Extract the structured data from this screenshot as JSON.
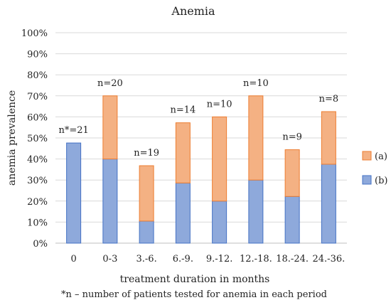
{
  "chart_data": {
    "type": "bar",
    "stacked": true,
    "title": "Anemia",
    "xlabel": "treatment duration in months",
    "ylabel": "anemia prevalence",
    "footnote": "*n – number of patients tested for anemia in each period",
    "categories": [
      "0",
      "0-3",
      "3.-6.",
      "6.-9.",
      "9.-12.",
      "12.-18.",
      "18.-24.",
      "24.-36."
    ],
    "n_labels": [
      "n*=21",
      "n=20",
      "n=19",
      "n=14",
      "n=10",
      "n=10",
      "n=9",
      "n=8"
    ],
    "series": [
      {
        "name": "(b)",
        "values": [
          47.6,
          40,
          10.5,
          28.6,
          20,
          30,
          22.2,
          37.5
        ],
        "color": "#8ea9db",
        "stroke": "#4472c4"
      },
      {
        "name": "(a)",
        "values": [
          0,
          30,
          26.3,
          28.6,
          40,
          40,
          22.2,
          25
        ],
        "color": "#f4b183",
        "stroke": "#ed7d31"
      }
    ],
    "legend_order": [
      "(a)",
      "(b)"
    ],
    "legend_position": "right",
    "ylim": [
      0,
      100
    ],
    "yticks": [
      "0%",
      "10%",
      "20%",
      "30%",
      "40%",
      "50%",
      "60%",
      "70%",
      "80%",
      "90%",
      "100%"
    ],
    "grid": true
  }
}
